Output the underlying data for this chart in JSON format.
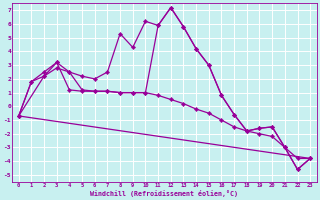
{
  "xlabel": "Windchill (Refroidissement éolien,°C)",
  "background_color": "#c8f0f0",
  "grid_color": "#aadddd",
  "line_color": "#990099",
  "xlim": [
    -0.5,
    23.5
  ],
  "ylim": [
    -5.5,
    7.5
  ],
  "xticks": [
    0,
    1,
    2,
    3,
    4,
    5,
    6,
    7,
    8,
    9,
    10,
    11,
    12,
    13,
    14,
    15,
    16,
    17,
    18,
    19,
    20,
    21,
    22,
    23
  ],
  "yticks": [
    -5,
    -4,
    -3,
    -2,
    -1,
    0,
    1,
    2,
    3,
    4,
    5,
    6,
    7
  ],
  "series1": [
    [
      0,
      -0.7
    ],
    [
      1,
      1.8
    ],
    [
      2,
      2.2
    ],
    [
      3,
      3.2
    ],
    [
      4,
      1.2
    ],
    [
      5,
      1.1
    ],
    [
      6,
      1.1
    ],
    [
      7,
      1.1
    ],
    [
      8,
      1.0
    ],
    [
      9,
      1.0
    ],
    [
      10,
      1.0
    ],
    [
      11,
      5.9
    ],
    [
      12,
      7.2
    ],
    [
      13,
      5.8
    ],
    [
      14,
      4.2
    ],
    [
      15,
      3.0
    ],
    [
      16,
      0.8
    ],
    [
      17,
      -0.6
    ],
    [
      18,
      -1.8
    ],
    [
      19,
      -1.6
    ],
    [
      20,
      -1.5
    ],
    [
      21,
      -3.0
    ],
    [
      22,
      -4.6
    ],
    [
      23,
      -3.8
    ]
  ],
  "series2": [
    [
      0,
      -0.7
    ],
    [
      1,
      1.8
    ],
    [
      2,
      2.5
    ],
    [
      3,
      3.2
    ],
    [
      4,
      2.5
    ],
    [
      5,
      2.2
    ],
    [
      6,
      2.0
    ],
    [
      7,
      2.5
    ],
    [
      8,
      5.3
    ],
    [
      9,
      4.3
    ],
    [
      10,
      6.2
    ],
    [
      11,
      5.9
    ],
    [
      12,
      7.2
    ],
    [
      13,
      5.8
    ],
    [
      14,
      4.2
    ],
    [
      15,
      3.0
    ],
    [
      16,
      0.8
    ],
    [
      17,
      -0.6
    ],
    [
      18,
      -1.8
    ],
    [
      19,
      -1.6
    ],
    [
      20,
      -1.5
    ],
    [
      21,
      -3.0
    ],
    [
      22,
      -4.6
    ],
    [
      23,
      -3.8
    ]
  ],
  "series3": [
    [
      0,
      -0.7
    ],
    [
      2,
      2.2
    ],
    [
      3,
      2.8
    ],
    [
      4,
      2.5
    ],
    [
      5,
      1.2
    ],
    [
      6,
      1.1
    ],
    [
      7,
      1.1
    ],
    [
      8,
      1.0
    ],
    [
      9,
      1.0
    ],
    [
      10,
      1.0
    ],
    [
      11,
      0.8
    ],
    [
      12,
      0.5
    ],
    [
      13,
      0.2
    ],
    [
      14,
      -0.2
    ],
    [
      15,
      -0.5
    ],
    [
      16,
      -1.0
    ],
    [
      17,
      -1.5
    ],
    [
      18,
      -1.8
    ],
    [
      19,
      -2.0
    ],
    [
      20,
      -2.2
    ],
    [
      21,
      -3.0
    ],
    [
      22,
      -3.8
    ],
    [
      23,
      -3.8
    ]
  ],
  "series4": [
    [
      0,
      -0.7
    ],
    [
      23,
      -3.8
    ]
  ]
}
